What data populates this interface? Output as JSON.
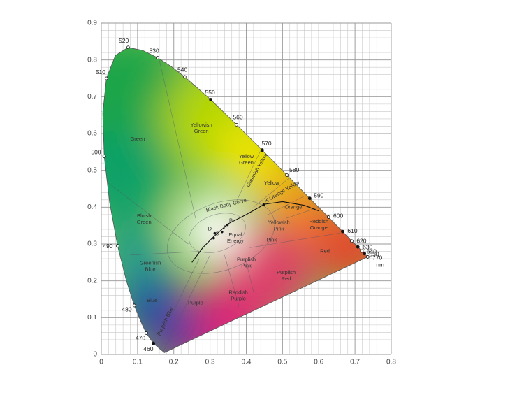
{
  "chart_data": {
    "type": "chromaticity",
    "xlim": [
      0,
      0.8
    ],
    "ylim": [
      0,
      0.9
    ],
    "xticks": [
      0,
      0.1,
      0.2,
      0.3,
      0.4,
      0.5,
      0.6,
      0.7,
      0.8
    ],
    "yticks": [
      0,
      0.1,
      0.2,
      0.3,
      0.4,
      0.5,
      0.6,
      0.7,
      0.8,
      0.9
    ],
    "grid": true,
    "locus": {
      "x": [
        0.174,
        0.144,
        0.124,
        0.11,
        0.091,
        0.069,
        0.045,
        0.023,
        0.008,
        0.004,
        0.014,
        0.039,
        0.074,
        0.114,
        0.155,
        0.193,
        0.23,
        0.302,
        0.373,
        0.444,
        0.512,
        0.575,
        0.627,
        0.666,
        0.691,
        0.708,
        0.719,
        0.726,
        0.735
      ],
      "y": [
        0.005,
        0.03,
        0.058,
        0.087,
        0.133,
        0.201,
        0.295,
        0.413,
        0.538,
        0.655,
        0.75,
        0.812,
        0.834,
        0.826,
        0.806,
        0.782,
        0.754,
        0.692,
        0.624,
        0.555,
        0.487,
        0.424,
        0.373,
        0.334,
        0.308,
        0.292,
        0.281,
        0.274,
        0.265
      ],
      "labels": [
        null,
        "460",
        "470",
        null,
        "480",
        null,
        "490",
        null,
        "500",
        null,
        "510",
        null,
        "520",
        null,
        "530",
        null,
        "540",
        "550",
        "560",
        "570",
        "580",
        "590",
        "600",
        "610",
        "620",
        "630",
        "640",
        "650",
        "770"
      ]
    },
    "unit": "nm",
    "regions": [
      "Green",
      "Yellowish Green",
      "Yellow Green",
      "Greenish Yellow",
      "Yellow",
      "Orange Yellow",
      "Orange",
      "Reddish Orange",
      "Red",
      "Yellowish Pink",
      "Pink",
      "Equal Energy",
      "Purplish Pink",
      "Purplish Red",
      "Reddish Purple",
      "Purple",
      "Purplish Blue",
      "Blue",
      "Greenish Blue",
      "Bluish Green"
    ],
    "curve_label": "Black Body Curve",
    "illuminants": {
      "names": [
        "A",
        "B",
        "C",
        "D",
        "E"
      ],
      "x": [
        0.448,
        0.348,
        0.31,
        0.313,
        0.333
      ],
      "y": [
        0.407,
        0.352,
        0.316,
        0.329,
        0.333
      ]
    }
  }
}
